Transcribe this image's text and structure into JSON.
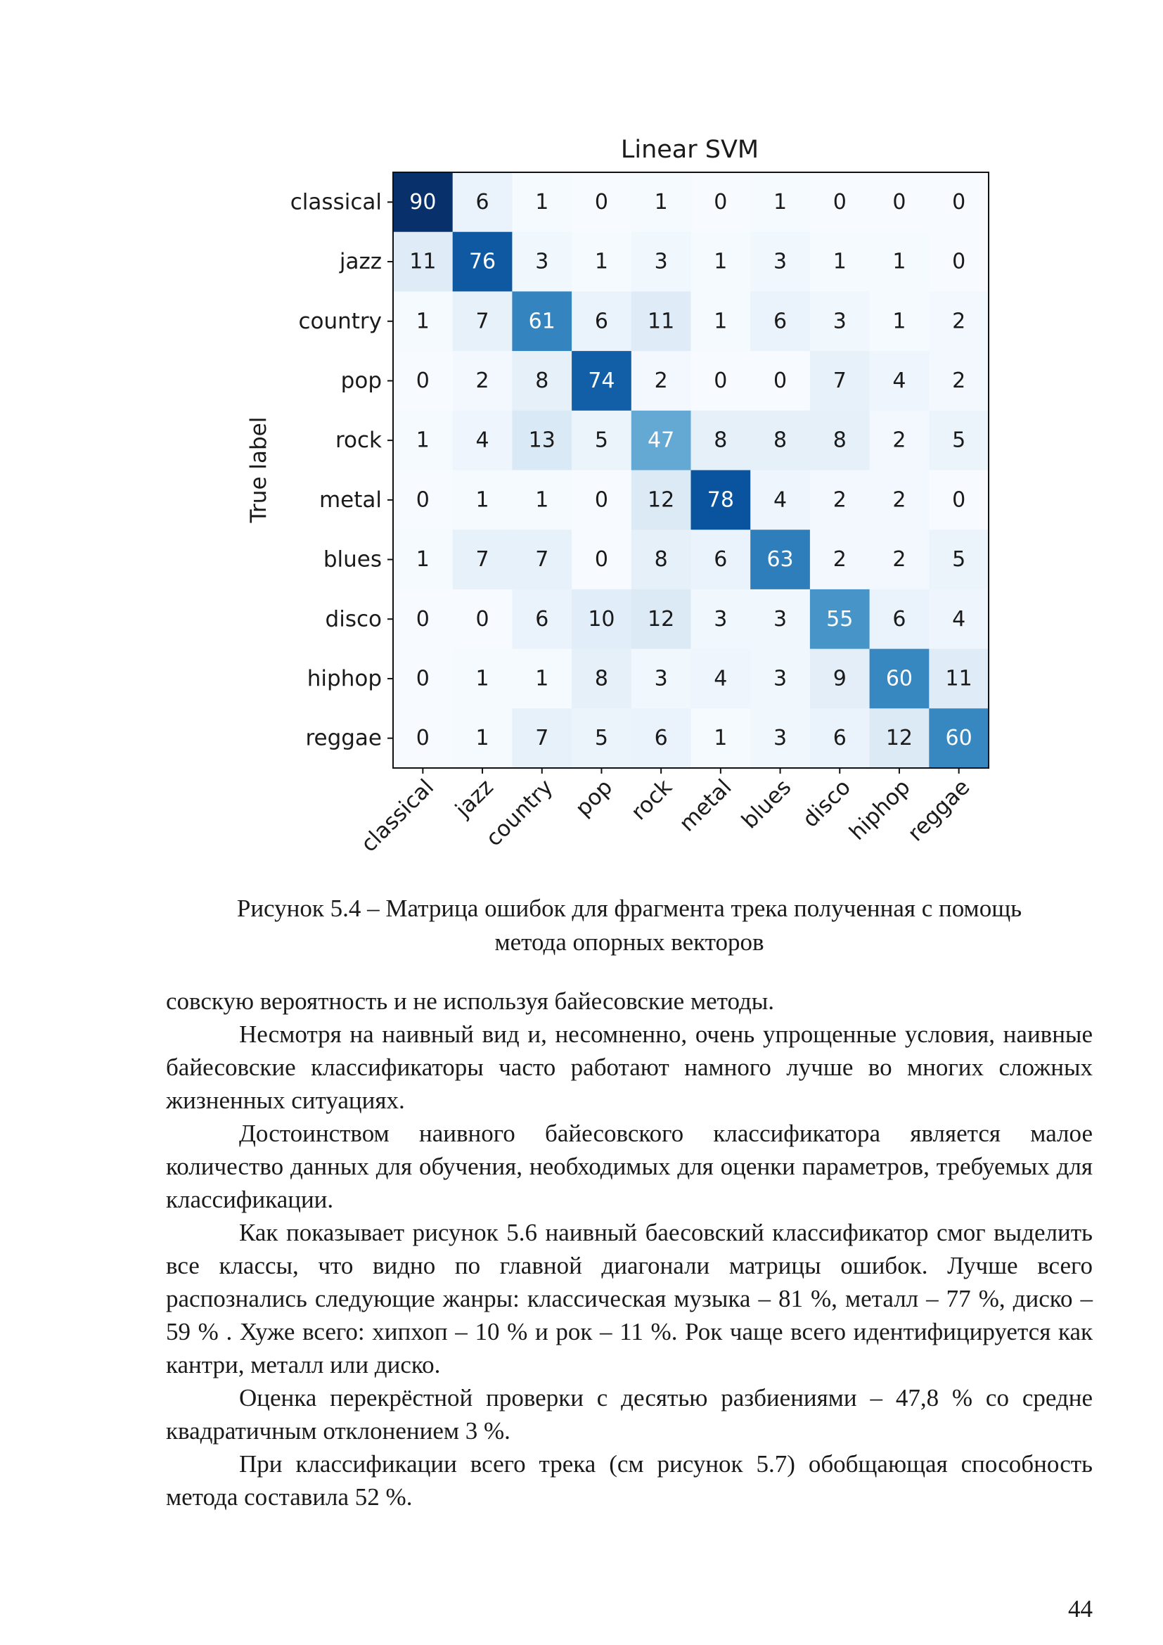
{
  "chart_data": {
    "type": "heatmap",
    "title": "Linear SVM",
    "ylabel": "True label",
    "xlabel": "",
    "labels": [
      "classical",
      "jazz",
      "country",
      "pop",
      "rock",
      "metal",
      "blues",
      "disco",
      "hiphop",
      "reggae"
    ],
    "matrix": [
      [
        90,
        6,
        1,
        0,
        1,
        0,
        1,
        0,
        0,
        0
      ],
      [
        11,
        76,
        3,
        1,
        3,
        1,
        3,
        1,
        1,
        0
      ],
      [
        1,
        7,
        61,
        6,
        11,
        1,
        6,
        3,
        1,
        2
      ],
      [
        0,
        2,
        8,
        74,
        2,
        0,
        0,
        7,
        4,
        2
      ],
      [
        1,
        4,
        13,
        5,
        47,
        8,
        8,
        8,
        2,
        5
      ],
      [
        0,
        1,
        1,
        0,
        12,
        78,
        4,
        2,
        2,
        0
      ],
      [
        1,
        7,
        7,
        0,
        8,
        6,
        63,
        2,
        2,
        5
      ],
      [
        0,
        0,
        6,
        10,
        12,
        3,
        3,
        55,
        6,
        4
      ],
      [
        0,
        1,
        1,
        8,
        3,
        4,
        3,
        9,
        60,
        11
      ],
      [
        0,
        1,
        7,
        5,
        6,
        1,
        3,
        6,
        12,
        60
      ]
    ],
    "colormap": "Blues",
    "value_range": [
      0,
      90
    ]
  },
  "caption": {
    "line1": "Рисунок 5.4 – Матрица ошибок для фрагмента трека полученная с помощь",
    "line2": "метода опорных векторов"
  },
  "paragraphs": [
    "совскую вероятность и не используя байесовские методы.",
    "Несмотря на наивный вид и, несомненно, очень упрощенные условия, наивные байесовские классификаторы часто работают намного лучше во многих сложных жизненных ситуациях.",
    "Достоинством наивного байесовского классификатора является малое количество данных для обучения, необходимых для оценки параметров, тре­буемых для классификации.",
    "Как показывает рисунок 5.6 наивный баесовский классификатор смог выделить все классы, что видно по главной диагонали матрицы ошибок. Лучше всего распознались следующие жанры: классическая музыка – 81 %, металл – 77 %, диско – 59 % . Хуже всего: хипхоп – 10 % и рок – 11 %. Рок чаще всего идентифицируется как кантри, металл или диско.",
    "Оценка перекрёстной проверки с десятью разбиениями – 47,8 % со средне квадратичным отклонением 3 %.",
    "При классификации всего трека (см рисунок 5.7) обобщающая спо­собность метода составила 52 %."
  ],
  "page_number": "44"
}
